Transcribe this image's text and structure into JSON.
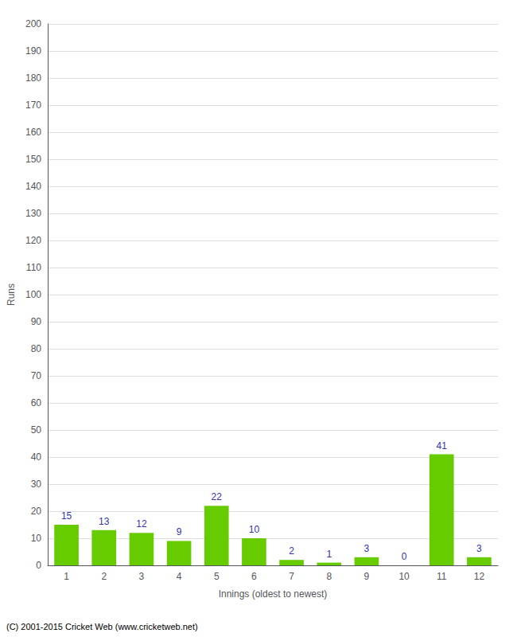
{
  "chart_data": {
    "type": "bar",
    "xlabel": "Innings (oldest to newest)",
    "ylabel": "Runs",
    "categories": [
      1,
      2,
      3,
      4,
      5,
      6,
      7,
      8,
      9,
      10,
      11,
      12
    ],
    "values": [
      15,
      13,
      12,
      9,
      22,
      10,
      2,
      1,
      3,
      0,
      41,
      3
    ],
    "color": "#66CC00",
    "ylim": [
      0,
      200
    ],
    "yticks": [
      0,
      10,
      20,
      30,
      40,
      50,
      60,
      70,
      80,
      90,
      100,
      110,
      120,
      130,
      140,
      150,
      160,
      170,
      180,
      190,
      200
    ],
    "grid": true,
    "data_labels": true,
    "annotations": [
      "(C) 2001-2015 Cricket Web (www.cricketweb.net)"
    ]
  }
}
